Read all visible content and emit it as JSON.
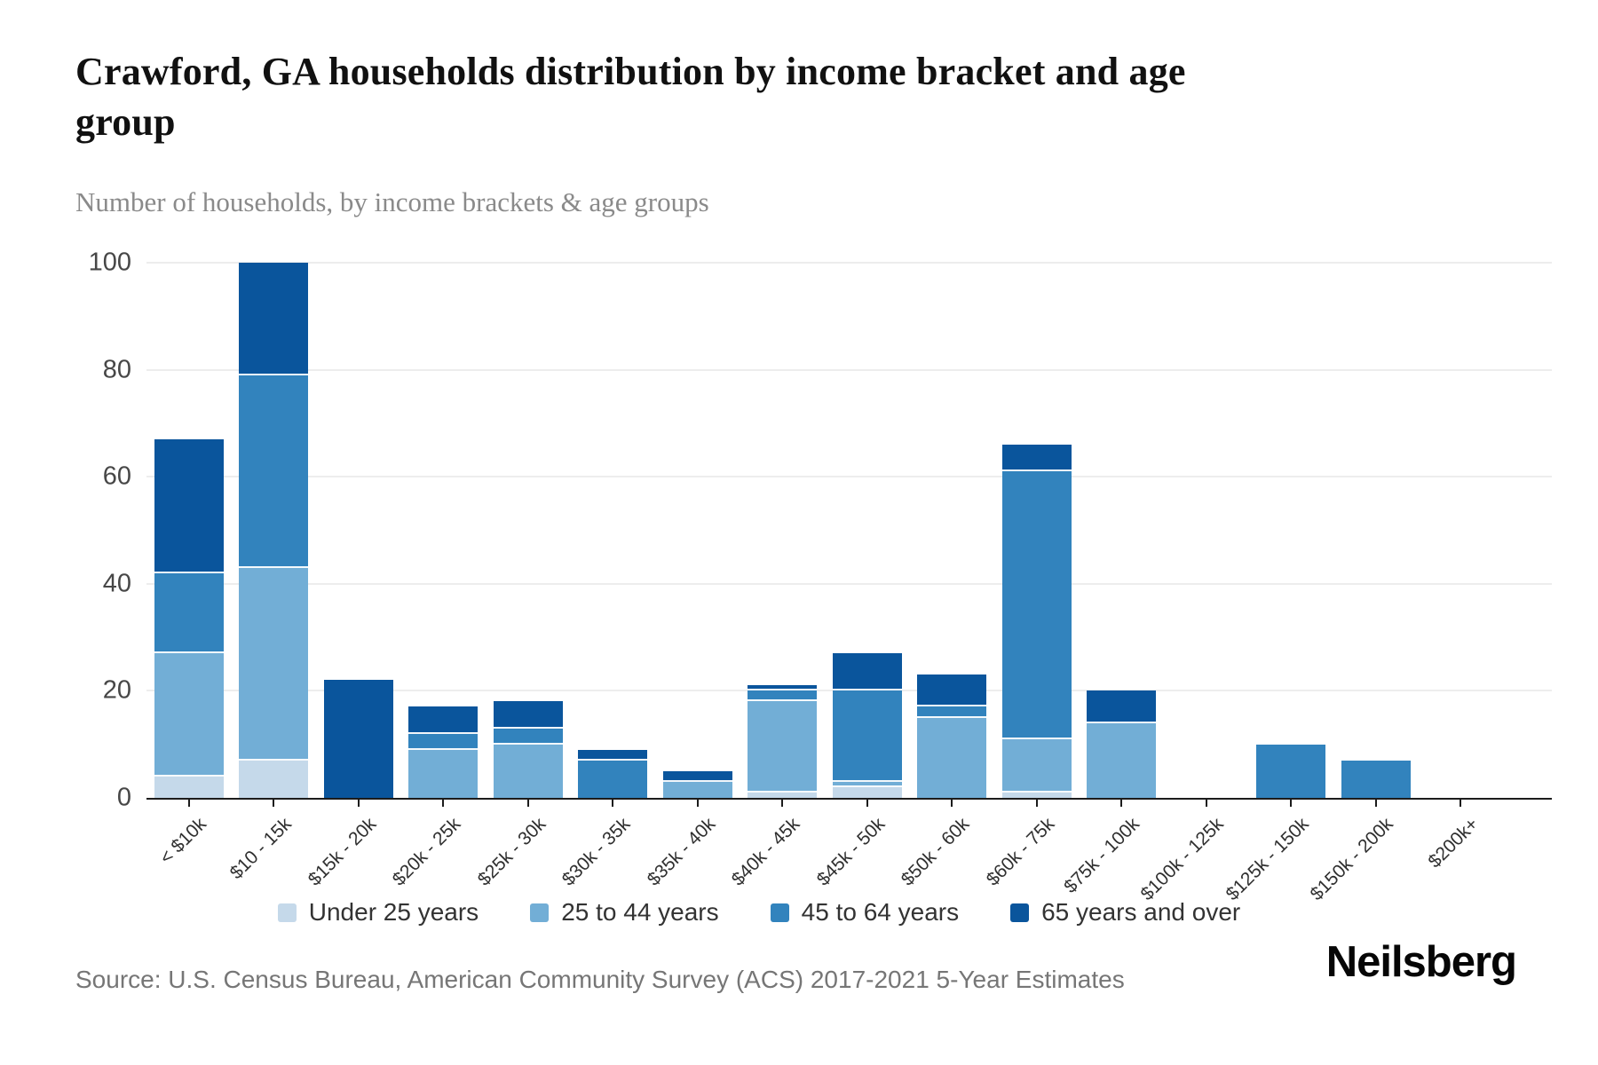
{
  "header": {
    "title": "Crawford, GA households distribution by income bracket and age group",
    "subtitle": "Number of households, by income brackets & age groups"
  },
  "footer": {
    "source": "Source: U.S. Census Bureau, American Community Survey (ACS) 2017-2021 5-Year Estimates",
    "brand": "Neilsberg"
  },
  "colors": {
    "under_25": "#c5d9ea",
    "age_25_44": "#72aed6",
    "age_45_64": "#3283bd",
    "age_65_over": "#0a559c",
    "gridline": "#ededed",
    "axis": "#1c1c1c"
  },
  "chart_data": {
    "type": "bar",
    "stacked": true,
    "title": "Crawford, GA households distribution by income bracket and age group",
    "subtitle": "Number of households, by income brackets & age groups",
    "xlabel": "",
    "ylabel": "Number of households",
    "ylim": [
      0,
      100
    ],
    "yticks": [
      0,
      20,
      40,
      60,
      80,
      100
    ],
    "grid": true,
    "legend_position": "bottom",
    "categories": [
      "< $10k",
      "$10 - 15k",
      "$15k - 20k",
      "$20k - 25k",
      "$25k - 30k",
      "$30k - 35k",
      "$35k - 40k",
      "$40k - 45k",
      "$45k - 50k",
      "$50k - 60k",
      "$60k - 75k",
      "$75k - 100k",
      "$100k - 125k",
      "$125k - 150k",
      "$150k - 200k",
      "$200k+"
    ],
    "series": [
      {
        "name": "Under 25 years",
        "color": "#c5d9ea",
        "values": [
          4,
          7,
          0,
          0,
          0,
          0,
          0,
          1,
          2,
          0,
          1,
          0,
          0,
          0,
          0,
          0
        ]
      },
      {
        "name": "25 to 44 years",
        "color": "#72aed6",
        "values": [
          23,
          36,
          0,
          9,
          10,
          0,
          3,
          17,
          1,
          15,
          10,
          14,
          0,
          0,
          0,
          0
        ]
      },
      {
        "name": "45 to 64 years",
        "color": "#3283bd",
        "values": [
          15,
          36,
          0,
          3,
          3,
          7,
          0,
          2,
          17,
          2,
          50,
          0,
          0,
          10,
          7,
          0
        ]
      },
      {
        "name": "65 years and over",
        "color": "#0a559c",
        "values": [
          25,
          21,
          22,
          5,
          5,
          2,
          2,
          1,
          7,
          6,
          5,
          6,
          0,
          0,
          0,
          0
        ]
      }
    ],
    "totals": [
      67,
      100,
      22,
      17,
      18,
      9,
      5,
      21,
      27,
      23,
      66,
      20,
      0,
      10,
      7,
      0
    ]
  }
}
